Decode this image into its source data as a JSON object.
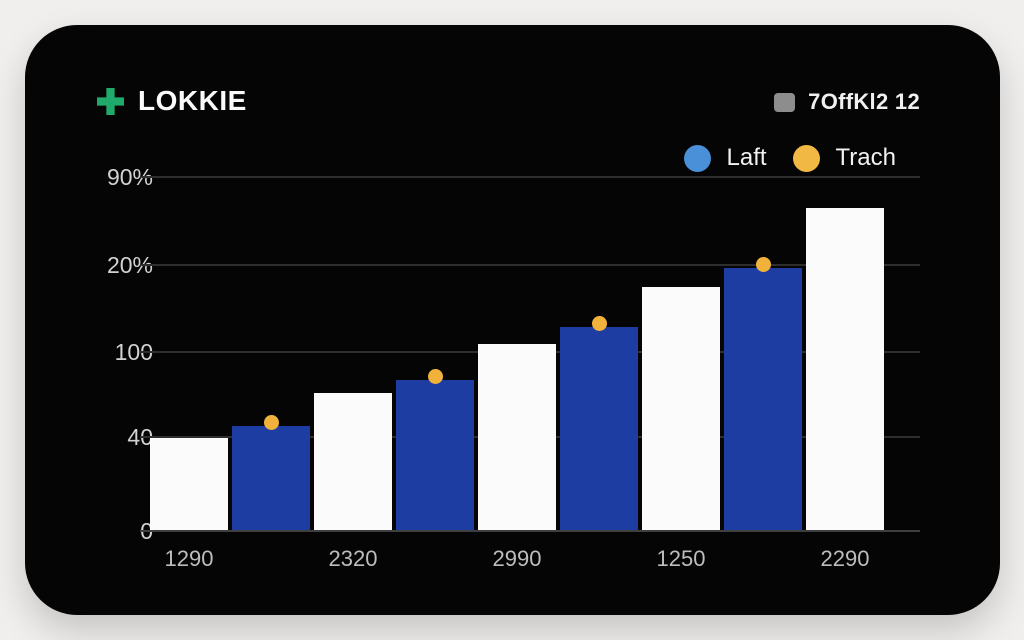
{
  "page": {
    "background": "#f1efed"
  },
  "card": {
    "background": "#050505"
  },
  "header": {
    "logo": {
      "icon": "plus-icon",
      "text": "LOKKIE"
    },
    "meta": {
      "icon": "square-icon",
      "text": "7OffKl2 12"
    }
  },
  "legend": {
    "items": [
      {
        "label": "Laft",
        "swatch_color": "#4a90d8"
      },
      {
        "label": "Trach",
        "swatch_color": "#f2b844"
      }
    ]
  },
  "colors": {
    "accent_green": "#1fa96b",
    "meta_icon_gray": "#8d8d8d",
    "bar_white": "#fbfbfb",
    "bar_blue": "#1e3da2",
    "marker_yellow": "#f1b23c",
    "grid_line": "#2e2e2e",
    "axis_line": "#3f3f3f"
  },
  "chart_data": {
    "type": "bar",
    "title": "",
    "xlabel": "",
    "ylabel": "",
    "grid": true,
    "legend_position": "top-right",
    "categories": [
      "1290",
      "2320",
      "2990",
      "1250",
      "2290"
    ],
    "y_tick_labels": [
      "90%",
      "20%",
      "100",
      "40",
      "0"
    ],
    "value_units": "percent of plot height (baseline 0 to top gridline 90%)",
    "bars": [
      {
        "fill": "white",
        "value_pct": 26.3,
        "marker": false
      },
      {
        "fill": "blue",
        "value_pct": 29.7,
        "marker": true
      },
      {
        "fill": "white",
        "value_pct": 39.0,
        "marker": false
      },
      {
        "fill": "blue",
        "value_pct": 42.7,
        "marker": true
      },
      {
        "fill": "white",
        "value_pct": 52.8,
        "marker": false
      },
      {
        "fill": "blue",
        "value_pct": 57.6,
        "marker": true
      },
      {
        "fill": "white",
        "value_pct": 68.9,
        "marker": false
      },
      {
        "fill": "blue",
        "value_pct": 74.3,
        "marker": true
      },
      {
        "fill": "white",
        "value_pct": 91.2,
        "marker": false
      }
    ],
    "series": [
      {
        "name": "Laft",
        "color": "#4a90d8"
      },
      {
        "name": "Trach",
        "color": "#f2b844"
      }
    ]
  }
}
